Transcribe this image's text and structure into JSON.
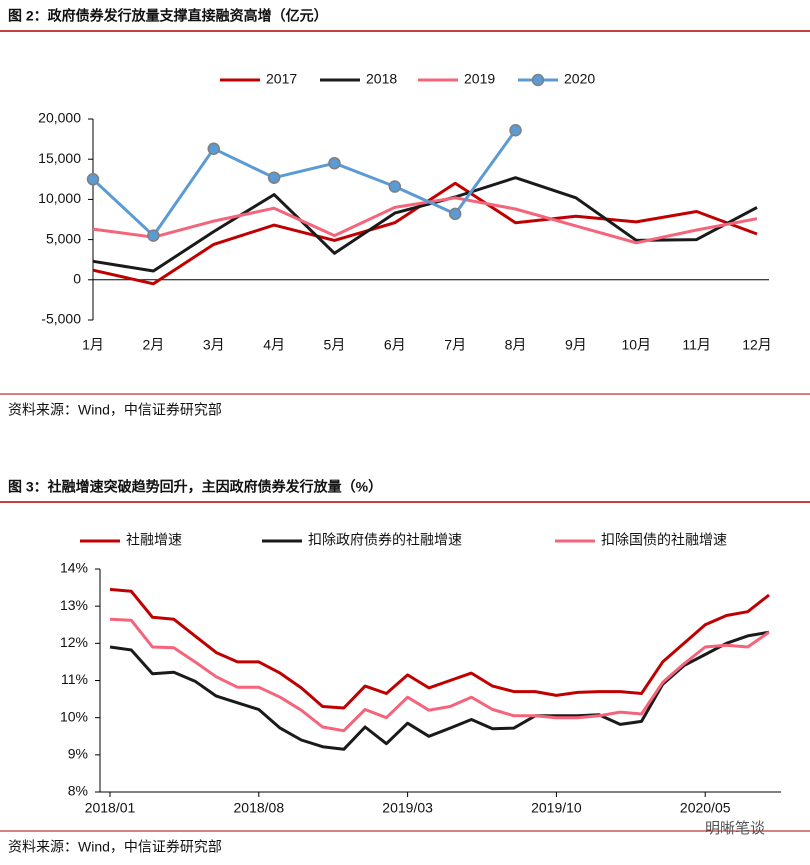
{
  "chart_data": [
    {
      "type": "line",
      "title": "图 2：政府债券发行放量支撑直接融资高增（亿元）",
      "source": "资料来源：Wind，中信证券研究部",
      "categories": [
        "1月",
        "2月",
        "3月",
        "4月",
        "5月",
        "6月",
        "7月",
        "8月",
        "9月",
        "10月",
        "11月",
        "12月"
      ],
      "series": [
        {
          "name": "2017",
          "color": "#c00000",
          "values": [
            1200,
            -500,
            4400,
            6800,
            4900,
            7100,
            12000,
            7100,
            7900,
            7200,
            8500,
            5700
          ]
        },
        {
          "name": "2018",
          "color": "#1a1a1a",
          "values": [
            2300,
            1100,
            6000,
            10600,
            3300,
            8300,
            10300,
            12700,
            10200,
            4900,
            5000,
            9000
          ]
        },
        {
          "name": "2019",
          "color": "#f4647a",
          "values": [
            6300,
            5300,
            7300,
            8900,
            5500,
            9000,
            10200,
            8800,
            6700,
            4600,
            6200,
            7600
          ]
        },
        {
          "name": "2020",
          "color": "#5b9bd5",
          "marker": "circle",
          "values": [
            12500,
            5500,
            16300,
            12700,
            14500,
            11600,
            8200,
            18600,
            null,
            null,
            null,
            null
          ]
        }
      ],
      "ylim": [
        -5000,
        20000
      ],
      "yticks": [
        {
          "value": -5000,
          "label": "-5,000"
        },
        0,
        {
          "value": 5000,
          "label": "5,000"
        },
        {
          "value": 10000,
          "label": "10,000"
        },
        {
          "value": 15000,
          "label": "15,000"
        },
        {
          "value": 20000,
          "label": "20,000"
        }
      ],
      "legend": "top"
    },
    {
      "type": "line",
      "title": "图 3：社融增速突破趋势回升，主因政府债券发行放量（%）",
      "source": "资料来源：Wind，中信证券研究部",
      "x": [
        "2018/01",
        "2018/02",
        "2018/03",
        "2018/04",
        "2018/05",
        "2018/06",
        "2018/07",
        "2018/08",
        "2018/09",
        "2018/10",
        "2018/11",
        "2018/12",
        "2019/01",
        "2019/02",
        "2019/03",
        "2019/04",
        "2019/05",
        "2019/06",
        "2019/07",
        "2019/08",
        "2019/09",
        "2019/10",
        "2019/11",
        "2019/12",
        "2020/01",
        "2020/02",
        "2020/03",
        "2020/04",
        "2020/05",
        "2020/06",
        "2020/07",
        "2020/08"
      ],
      "series": [
        {
          "name": "社融增速",
          "color": "#c00000",
          "values": [
            13.45,
            13.4,
            12.7,
            12.65,
            12.2,
            11.75,
            11.5,
            11.5,
            11.2,
            10.8,
            10.3,
            10.26,
            10.85,
            10.65,
            11.15,
            10.8,
            11.0,
            11.2,
            10.85,
            10.7,
            10.7,
            10.6,
            10.68,
            10.7,
            10.7,
            10.65,
            11.5,
            12.0,
            12.5,
            12.75,
            12.85,
            13.3
          ]
        },
        {
          "name": "扣除政府债券的社融增速",
          "color": "#1a1a1a",
          "values": [
            11.9,
            11.82,
            11.18,
            11.22,
            10.98,
            10.58,
            10.4,
            10.22,
            9.72,
            9.4,
            9.22,
            9.15,
            9.75,
            9.3,
            9.85,
            9.5,
            9.72,
            9.95,
            9.7,
            9.72,
            10.05,
            10.05,
            10.05,
            10.08,
            9.82,
            9.9,
            10.9,
            11.4,
            11.7,
            12.0,
            12.2,
            12.3
          ]
        },
        {
          "name": "扣除国债的社融增速",
          "color": "#f4647a",
          "values": [
            12.65,
            12.62,
            11.9,
            11.88,
            11.5,
            11.1,
            10.82,
            10.82,
            10.55,
            10.2,
            9.75,
            9.65,
            10.22,
            10.0,
            10.55,
            10.2,
            10.3,
            10.55,
            10.22,
            10.05,
            10.05,
            10.0,
            10.0,
            10.05,
            10.15,
            10.1,
            10.95,
            11.45,
            11.9,
            11.95,
            11.9,
            12.3
          ]
        }
      ],
      "xticks": [
        "2018/01",
        "2018/08",
        "2019/03",
        "2019/10",
        "2020/05"
      ],
      "ylim": [
        8,
        14
      ],
      "yticks": [
        {
          "value": 8,
          "label": "8%"
        },
        {
          "value": 9,
          "label": "9%"
        },
        {
          "value": 10,
          "label": "10%"
        },
        {
          "value": 11,
          "label": "11%"
        },
        {
          "value": 12,
          "label": "12%"
        },
        {
          "value": 13,
          "label": "13%"
        },
        {
          "value": 14,
          "label": "14%"
        }
      ],
      "legend": "top"
    }
  ],
  "watermark": "明晰笔谈"
}
